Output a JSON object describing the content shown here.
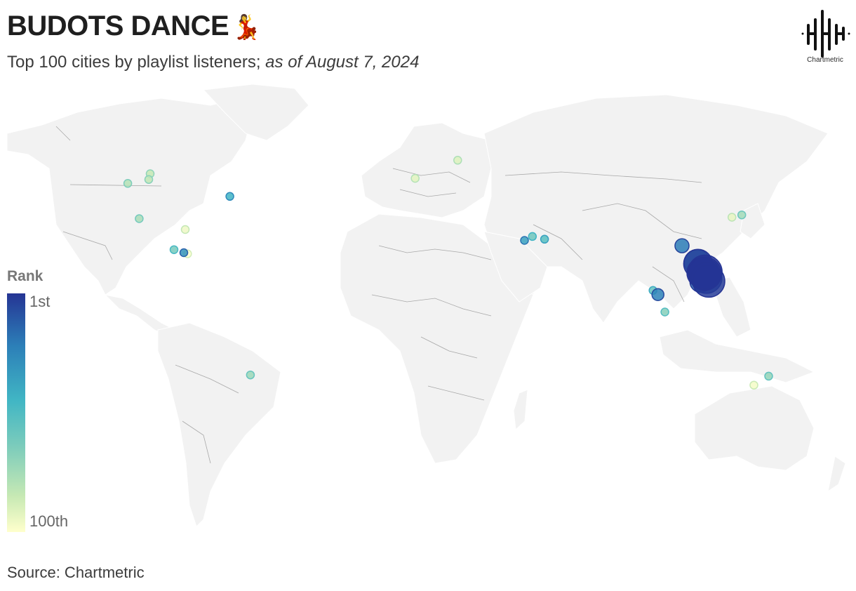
{
  "header": {
    "title": "BUDOTS DANCE",
    "title_emoji": "💃",
    "subtitle_main": "Top 100 cities by playlist listeners;",
    "subtitle_date": "as of August 7, 2024"
  },
  "brand": {
    "logo_icon": "chartmetric-waveform-icon",
    "logo_text": "Chartmetric"
  },
  "legend": {
    "title": "Rank",
    "max_label": "1st",
    "min_label": "100th",
    "colors": [
      "#253494",
      "#2c7fb8",
      "#41b6c4",
      "#7fcdbb",
      "#c7e9b4",
      "#ffffcc"
    ]
  },
  "footer": {
    "source": "Source: Chartmetric"
  },
  "map": {
    "land_color": "#f2f2f2",
    "border_color": "#9a9a9a",
    "cities": [
      {
        "lon": 124.0,
        "lat": 11.0,
        "rank": 1
      },
      {
        "lon": 123.9,
        "lat": 10.3,
        "rank": 2
      },
      {
        "lon": 125.6,
        "lat": 7.1,
        "rank": 3
      },
      {
        "lon": 124.6,
        "lat": 8.5,
        "rank": 4
      },
      {
        "lon": 122.6,
        "lat": 10.7,
        "rank": 5
      },
      {
        "lon": 121.0,
        "lat": 14.6,
        "rank": 6
      },
      {
        "lon": 123.3,
        "lat": 9.3,
        "rank": 7
      },
      {
        "lon": 120.6,
        "lat": 15.2,
        "rank": 9
      },
      {
        "lon": 124.9,
        "lat": 11.2,
        "rank": 11
      },
      {
        "lon": 122.1,
        "lat": 6.9,
        "rank": 13
      },
      {
        "lon": 114.1,
        "lat": 22.4,
        "rank": 20
      },
      {
        "lon": 103.8,
        "lat": 1.3,
        "rank": 22
      },
      {
        "lon": -99.1,
        "lat": 19.4,
        "rank": 28
      },
      {
        "lon": 46.7,
        "lat": 24.7,
        "rank": 33
      },
      {
        "lon": -79.4,
        "lat": 43.7,
        "rank": 40
      },
      {
        "lon": 55.3,
        "lat": 25.2,
        "rank": 48
      },
      {
        "lon": 101.7,
        "lat": 3.1,
        "rank": 52
      },
      {
        "lon": 50.1,
        "lat": 26.4,
        "rank": 55
      },
      {
        "lon": -103.3,
        "lat": 20.7,
        "rank": 58
      },
      {
        "lon": 106.8,
        "lat": -6.2,
        "rank": 62
      },
      {
        "lon": 151.2,
        "lat": -33.9,
        "rank": 66
      },
      {
        "lon": -70.6,
        "lat": -33.4,
        "rank": 68
      },
      {
        "lon": 139.7,
        "lat": 35.7,
        "rank": 70
      },
      {
        "lon": -118.2,
        "lat": 34.1,
        "rank": 72
      },
      {
        "lon": -123.1,
        "lat": 49.3,
        "rank": 75
      },
      {
        "lon": -114.1,
        "lat": 51.0,
        "rank": 78
      },
      {
        "lon": -113.5,
        "lat": 53.5,
        "rank": 80
      },
      {
        "lon": 121.5,
        "lat": 12.2,
        "rank": 82
      },
      {
        "lon": 125.2,
        "lat": 6.1,
        "rank": 84
      },
      {
        "lon": 123.0,
        "lat": 13.6,
        "rank": 86
      },
      {
        "lon": 18.1,
        "lat": 59.3,
        "rank": 88
      },
      {
        "lon": -0.1,
        "lat": 51.5,
        "rank": 90
      },
      {
        "lon": 135.5,
        "lat": 34.7,
        "rank": 92
      },
      {
        "lon": -98.5,
        "lat": 29.4,
        "rank": 94
      },
      {
        "lon": 144.9,
        "lat": -37.8,
        "rank": 96
      },
      {
        "lon": -97.5,
        "lat": 18.9,
        "rank": 99
      }
    ]
  }
}
